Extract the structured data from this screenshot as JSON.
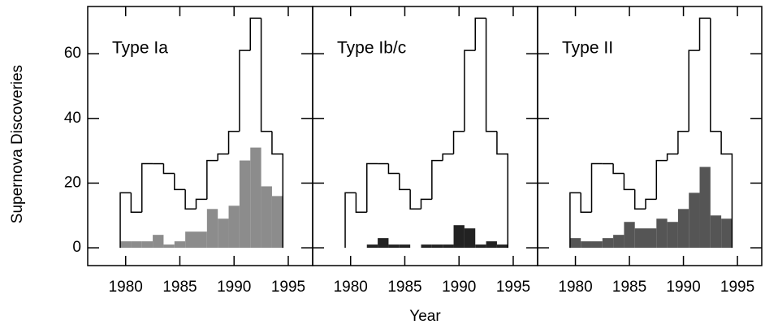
{
  "chart_data": [
    {
      "type": "histogram",
      "title": "Type Ia",
      "ylabel": "Supernova Discoveries",
      "bins": [
        1979.5,
        1980.5,
        1981.5,
        1982.5,
        1983.5,
        1984.5,
        1985.5,
        1986.5,
        1987.5,
        1988.5,
        1989.5,
        1990.5,
        1991.5,
        1992.5,
        1993.5,
        1994.5
      ],
      "series": [
        {
          "color": "#000000",
          "filled": false,
          "values": [
            17,
            11,
            26,
            26,
            23,
            18,
            12,
            15,
            27,
            29,
            36,
            61,
            71,
            36,
            29
          ]
        },
        {
          "color": "#8c8c8c",
          "filled": true,
          "values": [
            2,
            2,
            2,
            4,
            1,
            2,
            5,
            5,
            12,
            9,
            13,
            27,
            31,
            19,
            16
          ]
        }
      ],
      "xlim": [
        1976.5,
        1997.25
      ],
      "xticks": [
        1980,
        1985,
        1990,
        1995
      ],
      "ylim": [
        -5.5,
        74.6
      ],
      "yticks": [
        0,
        20,
        40,
        60
      ],
      "show_ytick_labels": true
    },
    {
      "type": "histogram",
      "title": "Type Ib/c",
      "xlabel": "Year",
      "bins": [
        1979.5,
        1980.5,
        1981.5,
        1982.5,
        1983.5,
        1984.5,
        1985.5,
        1986.5,
        1987.5,
        1988.5,
        1989.5,
        1990.5,
        1991.5,
        1992.5,
        1993.5,
        1994.5
      ],
      "series": [
        {
          "color": "#000000",
          "filled": false,
          "values": [
            17,
            11,
            26,
            26,
            23,
            18,
            12,
            15,
            27,
            29,
            36,
            61,
            71,
            36,
            29
          ]
        },
        {
          "color": "#222222",
          "filled": true,
          "values": [
            0,
            0,
            1,
            3,
            1,
            1,
            0,
            1,
            1,
            1,
            7,
            6,
            1,
            2,
            1
          ]
        }
      ],
      "xlim": [
        1976.5,
        1997.25
      ],
      "xticks": [
        1980,
        1985,
        1990,
        1995
      ],
      "ylim": [
        -5.5,
        74.6
      ],
      "yticks": [
        0,
        20,
        40,
        60
      ],
      "show_ytick_labels": false
    },
    {
      "type": "histogram",
      "title": "Type II",
      "bins": [
        1979.5,
        1980.5,
        1981.5,
        1982.5,
        1983.5,
        1984.5,
        1985.5,
        1986.5,
        1987.5,
        1988.5,
        1989.5,
        1990.5,
        1991.5,
        1992.5,
        1993.5,
        1994.5
      ],
      "series": [
        {
          "color": "#000000",
          "filled": false,
          "values": [
            17,
            11,
            26,
            26,
            23,
            18,
            12,
            15,
            27,
            29,
            36,
            61,
            71,
            36,
            29
          ]
        },
        {
          "color": "#555555",
          "filled": true,
          "values": [
            3,
            2,
            2,
            3,
            4,
            8,
            6,
            6,
            9,
            8,
            12,
            17,
            25,
            10,
            9
          ]
        }
      ],
      "xlim": [
        1976.5,
        1997.25
      ],
      "xticks": [
        1980,
        1985,
        1990,
        1995
      ],
      "ylim": [
        -5.5,
        74.6
      ],
      "yticks": [
        0,
        20,
        40,
        60
      ],
      "show_ytick_labels": false
    }
  ]
}
